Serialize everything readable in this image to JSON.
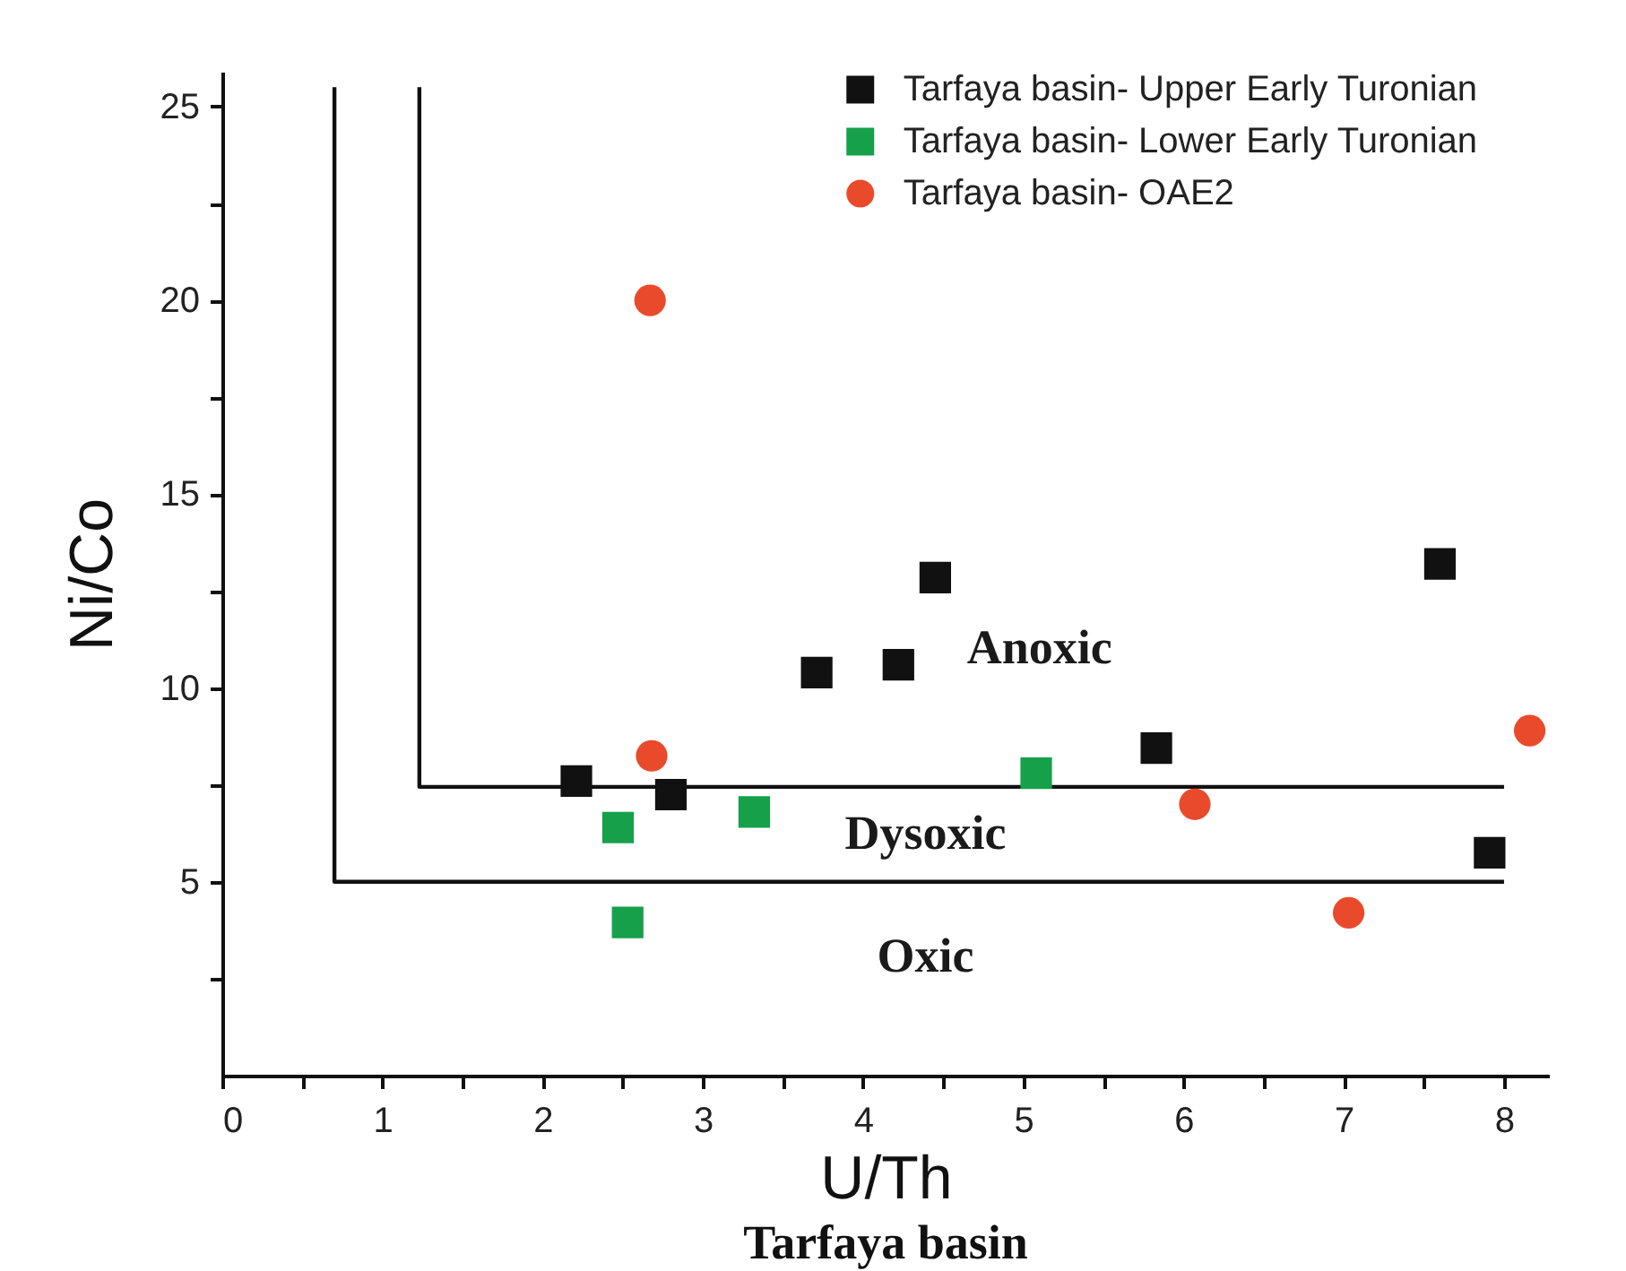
{
  "chart_data": {
    "type": "scatter",
    "title": "Tarfaya basin",
    "xlabel": "U/Th",
    "ylabel": "Ni/Co",
    "xlim": [
      0,
      8.28
    ],
    "ylim": [
      0,
      25.9
    ],
    "xticks": [
      0,
      {
        "value": 0.5,
        "label": null
      },
      1,
      {
        "value": 1.5,
        "label": null
      },
      2,
      {
        "value": 2.5,
        "label": null
      },
      3,
      {
        "value": 3.5,
        "label": null
      },
      4,
      {
        "value": 4.5,
        "label": null
      },
      5,
      {
        "value": 5.5,
        "label": null
      },
      6,
      {
        "value": 6.5,
        "label": null
      },
      7,
      {
        "value": 7.5,
        "label": null
      },
      8
    ],
    "yticks": [
      {
        "value": 2.5,
        "label": null
      },
      5,
      {
        "value": 7.5,
        "label": null
      },
      10,
      {
        "value": 12.5,
        "label": null
      },
      15,
      {
        "value": 17.5,
        "label": null
      },
      20,
      {
        "value": 22.5,
        "label": null
      },
      25
    ],
    "grid": false,
    "legend": "top right",
    "series": [
      {
        "type": "line",
        "color": "#111111",
        "line_style": "solid",
        "x": [
          0.7,
          0.7,
          8.0
        ],
        "values": [
          25.5,
          5,
          5
        ]
      },
      {
        "type": "line",
        "color": "#111111",
        "line_style": "solid",
        "x": [
          1.23,
          1.23,
          8.0
        ],
        "values": [
          25.5,
          7.45,
          7.45
        ]
      },
      {
        "name": "Tarfaya basin- Upper Early Turonian",
        "color": "#111111",
        "marker": "square",
        "x": [
          2.21,
          2.8,
          3.71,
          4.22,
          4.45,
          5.83,
          7.6,
          7.91
        ],
        "values": [
          7.6,
          7.25,
          10.4,
          10.6,
          12.85,
          8.45,
          13.2,
          5.75
        ]
      },
      {
        "name": "Tarfaya basin- Lower Early Turonian",
        "color": "#16a04a",
        "marker": "square",
        "x": [
          2.47,
          2.53,
          3.32,
          5.08
        ],
        "values": [
          6.4,
          3.95,
          6.8,
          7.8
        ]
      },
      {
        "name": "Tarfaya basin- OAE2",
        "color": "#ea4a2c",
        "marker": "circle",
        "x": [
          2.67,
          2.68,
          6.07,
          7.03,
          8.16
        ],
        "values": [
          20.0,
          8.25,
          7.0,
          4.2,
          8.9
        ]
      }
    ],
    "annotations": [
      "Anoxic",
      "Dysoxic",
      "Oxic"
    ]
  }
}
